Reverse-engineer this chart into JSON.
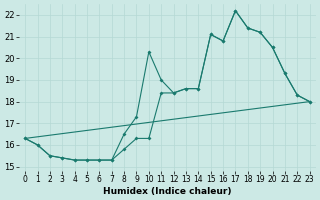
{
  "xlabel": "Humidex (Indice chaleur)",
  "bg_color": "#cce9e5",
  "grid_color": "#b5d9d4",
  "line_color": "#1a7a6e",
  "xlim": [
    -0.5,
    23.5
  ],
  "ylim": [
    14.8,
    22.5
  ],
  "xticks": [
    0,
    1,
    2,
    3,
    4,
    5,
    6,
    7,
    8,
    9,
    10,
    11,
    12,
    13,
    14,
    15,
    16,
    17,
    18,
    19,
    20,
    21,
    22,
    23
  ],
  "yticks": [
    15,
    16,
    17,
    18,
    19,
    20,
    21,
    22
  ],
  "trend_x": [
    0,
    23
  ],
  "trend_y": [
    16.3,
    18.0
  ],
  "line_lower_x": [
    0,
    1,
    2,
    3,
    4,
    5,
    6,
    7,
    8,
    9,
    10,
    11,
    12,
    13,
    14,
    15,
    16,
    17,
    18,
    19,
    20,
    21,
    22,
    23
  ],
  "line_lower_y": [
    16.3,
    16.0,
    15.5,
    15.4,
    15.3,
    15.3,
    15.3,
    15.3,
    15.8,
    16.3,
    16.3,
    18.4,
    18.4,
    18.6,
    18.6,
    21.1,
    20.8,
    22.2,
    21.4,
    21.2,
    20.5,
    19.3,
    18.3,
    18.0
  ],
  "line_upper_x": [
    0,
    1,
    2,
    3,
    4,
    5,
    6,
    7,
    8,
    9,
    10,
    11,
    12,
    13,
    14,
    15,
    16,
    17,
    18,
    19,
    20,
    21,
    22,
    23
  ],
  "line_upper_y": [
    16.3,
    16.0,
    15.5,
    15.4,
    15.3,
    15.3,
    15.3,
    15.3,
    16.5,
    17.3,
    20.3,
    19.0,
    18.4,
    18.6,
    18.6,
    21.1,
    20.8,
    22.2,
    21.4,
    21.2,
    20.5,
    19.3,
    18.3,
    18.0
  ]
}
